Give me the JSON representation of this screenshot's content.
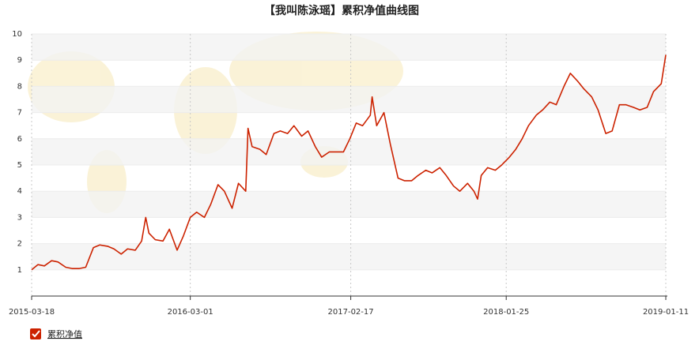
{
  "chart_data": {
    "type": "line",
    "title": "【我叫陈泳瑶】累积净值曲线图",
    "x": [
      "2015-03-18",
      "2015-04-01",
      "2015-04-15",
      "2015-05-01",
      "2015-05-15",
      "2015-06-01",
      "2015-06-15",
      "2015-07-01",
      "2015-07-15",
      "2015-08-01",
      "2015-08-15",
      "2015-09-01",
      "2015-09-15",
      "2015-10-01",
      "2015-10-15",
      "2015-11-01",
      "2015-11-15",
      "2015-11-24",
      "2015-12-01",
      "2015-12-15",
      "2016-01-01",
      "2016-01-15",
      "2016-02-01",
      "2016-02-15",
      "2016-03-01",
      "2016-03-15",
      "2016-04-01",
      "2016-04-15",
      "2016-05-01",
      "2016-05-15",
      "2016-06-01",
      "2016-06-15",
      "2016-07-01",
      "2016-07-06",
      "2016-07-15",
      "2016-08-01",
      "2016-08-15",
      "2016-09-01",
      "2016-09-15",
      "2016-10-01",
      "2016-10-15",
      "2016-11-01",
      "2016-11-15",
      "2016-12-01",
      "2016-12-15",
      "2017-01-01",
      "2017-01-15",
      "2017-02-01",
      "2017-02-15",
      "2017-03-01",
      "2017-03-15",
      "2017-04-01",
      "2017-04-05",
      "2017-04-15",
      "2017-05-01",
      "2017-05-15",
      "2017-06-01",
      "2017-06-15",
      "2017-07-01",
      "2017-07-15",
      "2017-08-01",
      "2017-08-15",
      "2017-09-01",
      "2017-09-15",
      "2017-10-01",
      "2017-10-15",
      "2017-11-01",
      "2017-11-15",
      "2017-11-23",
      "2017-12-01",
      "2017-12-15",
      "2018-01-01",
      "2018-01-15",
      "2018-02-01",
      "2018-02-15",
      "2018-03-01",
      "2018-03-15",
      "2018-04-01",
      "2018-04-15",
      "2018-05-01",
      "2018-05-15",
      "2018-06-01",
      "2018-06-15",
      "2018-07-01",
      "2018-07-15",
      "2018-08-01",
      "2018-08-15",
      "2018-09-01",
      "2018-09-15",
      "2018-10-01",
      "2018-10-15",
      "2018-11-01",
      "2018-11-15",
      "2018-12-01",
      "2018-12-15",
      "2019-01-01",
      "2019-01-11"
    ],
    "series": [
      {
        "name": "累积净值",
        "color": "#cc2200",
        "values": [
          1.0,
          1.2,
          1.15,
          1.35,
          1.3,
          1.1,
          1.05,
          1.05,
          1.1,
          1.85,
          1.95,
          1.9,
          1.8,
          1.6,
          1.8,
          1.75,
          2.1,
          3.0,
          2.4,
          2.15,
          2.1,
          2.55,
          1.75,
          2.3,
          3.0,
          3.2,
          3.0,
          3.5,
          4.25,
          4.0,
          3.35,
          4.3,
          4.0,
          6.4,
          5.7,
          5.6,
          5.4,
          6.2,
          6.3,
          6.2,
          6.5,
          6.1,
          6.3,
          5.7,
          5.3,
          5.5,
          5.5,
          5.5,
          6.0,
          6.6,
          6.5,
          6.9,
          7.6,
          6.5,
          7.0,
          5.8,
          4.5,
          4.4,
          4.4,
          4.6,
          4.8,
          4.7,
          4.9,
          4.6,
          4.2,
          4.0,
          4.3,
          4.0,
          3.7,
          4.6,
          4.9,
          4.8,
          5.0,
          5.3,
          5.6,
          6.0,
          6.5,
          6.9,
          7.1,
          7.4,
          7.3,
          8.0,
          8.5,
          8.2,
          7.9,
          7.6,
          7.1,
          6.2,
          6.3,
          7.3,
          7.3,
          7.2,
          7.1,
          7.2,
          7.8,
          8.1,
          9.2
        ]
      }
    ],
    "xlim": [
      "2015-03-18",
      "2019-01-11"
    ],
    "xticks": [
      "2015-03-18",
      "2016-03-01",
      "2017-02-17",
      "2018-01-25",
      "2019-01-11"
    ],
    "ylim": [
      0,
      10
    ],
    "yticks": [
      1,
      2,
      3,
      4,
      5,
      6,
      7,
      8,
      9,
      10
    ],
    "grid": true
  }
}
